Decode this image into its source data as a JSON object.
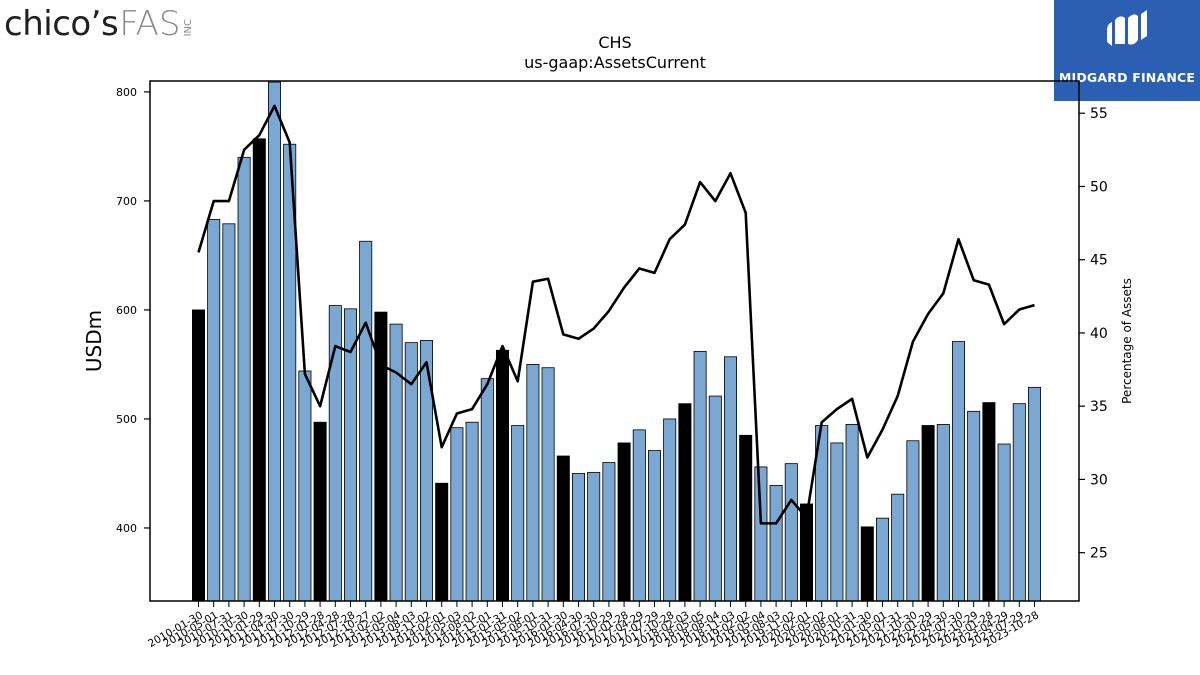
{
  "logos": {
    "left_main": "chico’s",
    "left_fas": "FAS",
    "left_inc": "INC",
    "right_brand": "MIDGARD FINANCE"
  },
  "chart_data": {
    "type": "bar",
    "title": "CHS",
    "subtitle": "us-gaap:AssetsCurrent",
    "ylabel": "USDm",
    "y2label": "Percentage of Assets",
    "ylim": [
      333,
      810
    ],
    "y2lim": [
      21.7,
      57.2
    ],
    "yticks": [
      400,
      500,
      600,
      700,
      800
    ],
    "y2ticks": [
      25,
      30,
      35,
      40,
      45,
      50,
      55
    ],
    "grid": false,
    "colors": {
      "bar_highlight": "#000000",
      "bar_default": "#7aa8d2",
      "line": "#000000"
    },
    "categories": [
      "2010-01-30",
      "2010-05-01",
      "2010-07-31",
      "2010-10-30",
      "2011-01-29",
      "2011-04-30",
      "2011-07-30",
      "2011-10-29",
      "2012-01-28",
      "2012-04-28",
      "2012-07-28",
      "2012-10-27",
      "2013-02-02",
      "2013-05-04",
      "2013-08-03",
      "2013-11-02",
      "2014-02-01",
      "2014-05-03",
      "2014-08-02",
      "2014-11-01",
      "2015-01-31",
      "2015-05-02",
      "2015-08-01",
      "2015-10-31",
      "2016-01-30",
      "2016-04-30",
      "2016-07-30",
      "2016-10-29",
      "2017-01-28",
      "2017-04-29",
      "2017-07-29",
      "2017-10-28",
      "2018-02-03",
      "2018-05-05",
      "2018-08-04",
      "2018-11-03",
      "2019-02-02",
      "2019-05-04",
      "2019-08-03",
      "2019-11-02",
      "2020-02-01",
      "2020-05-02",
      "2020-08-01",
      "2020-10-31",
      "2021-01-30",
      "2021-05-01",
      "2021-07-31",
      "2021-10-30",
      "2022-01-29",
      "2022-04-30",
      "2022-07-30",
      "2022-10-29",
      "2023-01-28",
      "2023-04-29",
      "2023-07-29",
      "2023-10-28"
    ],
    "tick_labels": [
      "2010-01-30",
      "2010-05-01",
      "2010-07-31",
      "2010-10-30",
      "2011-01-29",
      "2011-04-30",
      "2011-07-30",
      "2011-10-29",
      "2012-01-28",
      "2012-04-28",
      "2012-07-28",
      "2012-10-27",
      "2013-02-02",
      "2013-05-04",
      "2013-08-03",
      "2013-11-02",
      "2014-02-01",
      "2014-05-03",
      "2014-08-02",
      "2014-11-01",
      "2015-01-31",
      "2015-05-02",
      "2015-08-01",
      "2015-10-31",
      "2016-01-30",
      "2016-04-30",
      "2016-07-30",
      "2016-10-29",
      "2017-01-28",
      "2017-04-29",
      "2017-07-29",
      "2017-10-28",
      "2018-02-03",
      "2018-05-05",
      "2018-08-04",
      "2018-11-03",
      "2019-02-02",
      "2019-05-04",
      "2019-08-03",
      "2019-11-02",
      "2020-02-01",
      "2020-05-02",
      "2020-08-01",
      "2020-10-31",
      "2021-01-30",
      "2021-05-01",
      "2021-07-31",
      "2021-10-30",
      "2022-01-29",
      "2022-04-30",
      "2022-07-30",
      "2022-10-29",
      "2023-01-28",
      "2023-04-29",
      "2023-07-29",
      "2023-10-28"
    ],
    "values": [
      600,
      683,
      679,
      740,
      757,
      809,
      752,
      544,
      497,
      604,
      601,
      663,
      598,
      587,
      570,
      572,
      441,
      492,
      497,
      537,
      563,
      494,
      550,
      547,
      466,
      450,
      451,
      460,
      478,
      490,
      471,
      500,
      514,
      562,
      521,
      557,
      485,
      456,
      439,
      459,
      422,
      494,
      478,
      495,
      401,
      409,
      431,
      480,
      494,
      495,
      571,
      507,
      515,
      477,
      514,
      529
    ],
    "highlight": [
      true,
      false,
      false,
      false,
      true,
      false,
      false,
      false,
      true,
      false,
      false,
      false,
      true,
      false,
      false,
      false,
      true,
      false,
      false,
      false,
      true,
      false,
      false,
      false,
      true,
      false,
      false,
      false,
      true,
      false,
      false,
      false,
      true,
      false,
      false,
      false,
      true,
      false,
      false,
      false,
      true,
      false,
      false,
      false,
      true,
      false,
      false,
      false,
      true,
      false,
      false,
      false,
      true,
      false,
      false,
      false
    ],
    "line_values": [
      45.5,
      49.0,
      49.0,
      52.5,
      53.5,
      55.5,
      53.0,
      37.2,
      35.0,
      39.1,
      38.7,
      40.7,
      37.8,
      37.3,
      36.5,
      38.0,
      32.2,
      34.5,
      34.8,
      36.5,
      39.1,
      36.7,
      43.5,
      43.7,
      39.9,
      39.6,
      40.3,
      41.5,
      43.1,
      44.4,
      44.1,
      46.4,
      47.4,
      50.3,
      49.0,
      50.9,
      48.2,
      27.0,
      27.0,
      28.6,
      27.4,
      33.9,
      34.8,
      35.5,
      31.5,
      33.4,
      35.7,
      39.4,
      41.3,
      42.7,
      46.4,
      43.6,
      43.3,
      40.6,
      41.6,
      41.9
    ]
  }
}
